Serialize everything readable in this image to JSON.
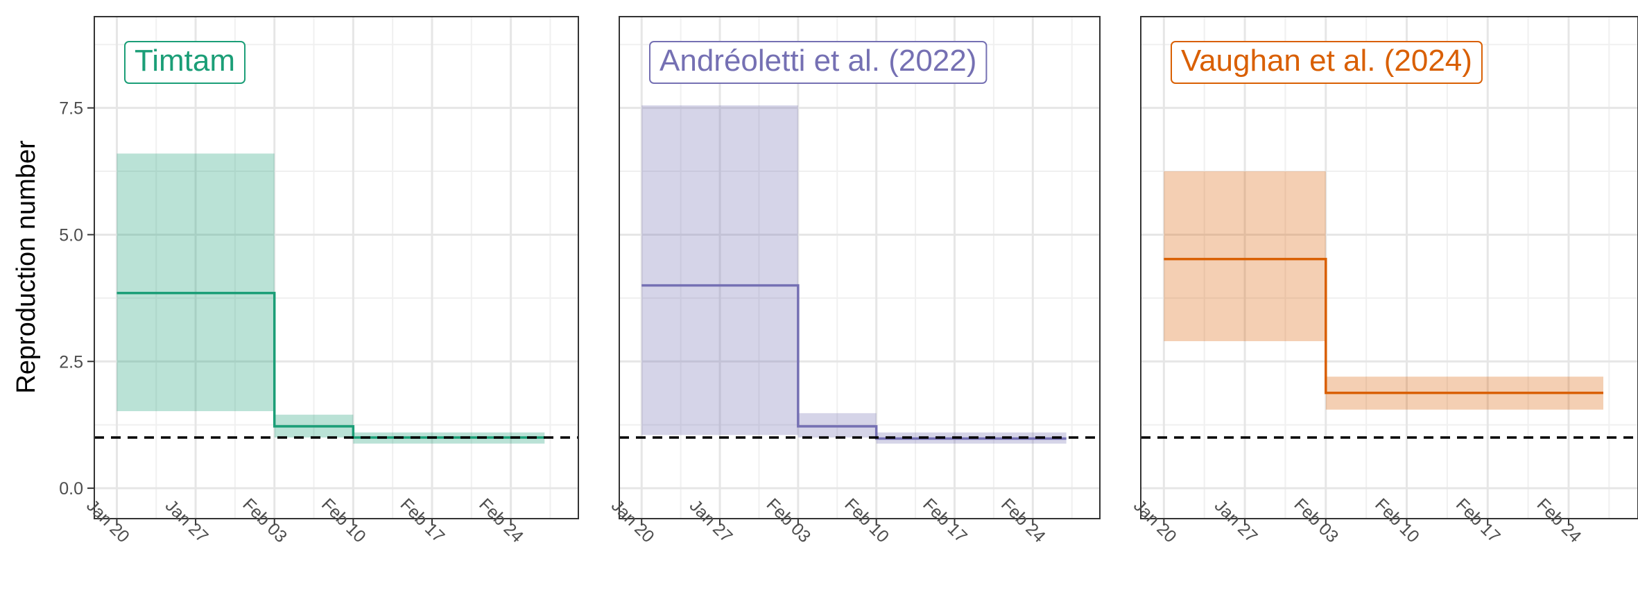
{
  "figure": {
    "ylabel": "Reproduction number"
  },
  "chart_data": [
    {
      "type": "line",
      "title": "Timtam",
      "color": "#1b9e77",
      "xlabel": "",
      "ylabel": "Reproduction number",
      "x_ticks": [
        "Jan 20",
        "Jan 27",
        "Feb 03",
        "Feb 10",
        "Feb 17",
        "Feb 24"
      ],
      "xlim": [
        "2024-01-18",
        "2024-03-01"
      ],
      "ylim": [
        -0.6,
        9.3
      ],
      "y_ticks": [
        "0.0",
        "2.5",
        "5.0",
        "7.5"
      ],
      "reference_line": 1.0,
      "grid": true,
      "series": [
        {
          "steps": [
            {
              "start": "2024-01-20",
              "end": "2024-02-03",
              "median": 3.85,
              "lower": 1.52,
              "upper": 6.6
            },
            {
              "start": "2024-02-03",
              "end": "2024-02-10",
              "median": 1.22,
              "lower": 1.0,
              "upper": 1.45
            },
            {
              "start": "2024-02-10",
              "end": "2024-02-27",
              "median": 1.0,
              "lower": 0.88,
              "upper": 1.1
            }
          ]
        }
      ]
    },
    {
      "type": "line",
      "title": "Andréoletti et al. (2022)",
      "color": "#7570b3",
      "xlabel": "",
      "ylabel": "",
      "x_ticks": [
        "Jan 20",
        "Jan 27",
        "Feb 03",
        "Feb 10",
        "Feb 17",
        "Feb 24"
      ],
      "xlim": [
        "2024-01-18",
        "2024-03-01"
      ],
      "ylim": [
        -0.6,
        9.3
      ],
      "reference_line": 1.0,
      "grid": true,
      "series": [
        {
          "steps": [
            {
              "start": "2024-01-20",
              "end": "2024-02-03",
              "median": 4.0,
              "lower": 1.05,
              "upper": 7.55
            },
            {
              "start": "2024-02-03",
              "end": "2024-02-10",
              "median": 1.22,
              "lower": 1.0,
              "upper": 1.48
            },
            {
              "start": "2024-02-10",
              "end": "2024-02-27",
              "median": 0.98,
              "lower": 0.88,
              "upper": 1.1
            }
          ]
        }
      ]
    },
    {
      "type": "line",
      "title": "Vaughan et al. (2024)",
      "color": "#d95f02",
      "xlabel": "",
      "ylabel": "",
      "x_ticks": [
        "Jan 20",
        "Jan 27",
        "Feb 03",
        "Feb 10",
        "Feb 17",
        "Feb 24"
      ],
      "xlim": [
        "2024-01-18",
        "2024-03-01"
      ],
      "ylim": [
        -0.6,
        9.3
      ],
      "reference_line": 1.0,
      "grid": true,
      "series": [
        {
          "steps": [
            {
              "start": "2024-01-20",
              "end": "2024-02-03",
              "median": 4.52,
              "lower": 2.9,
              "upper": 6.25
            },
            {
              "start": "2024-02-03",
              "end": "2024-02-27",
              "median": 1.88,
              "lower": 1.55,
              "upper": 2.2
            }
          ]
        }
      ]
    }
  ]
}
